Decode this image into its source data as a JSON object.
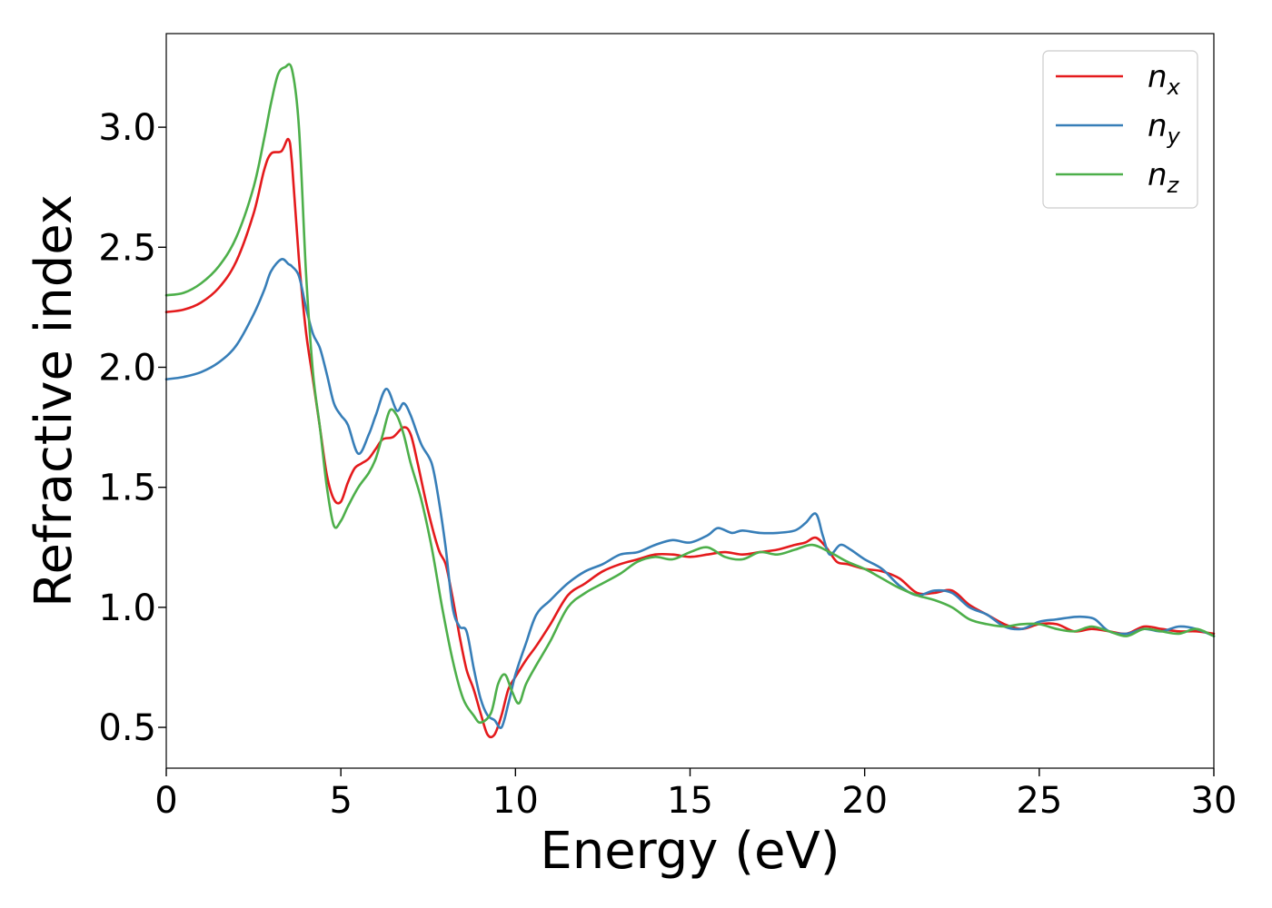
{
  "chart_data": {
    "type": "line",
    "title": "",
    "xlabel": "Energy (eV)",
    "ylabel": "Refractive index",
    "xlim": [
      0,
      30
    ],
    "ylim": [
      0.33,
      3.39
    ],
    "xticks": [
      "0",
      "5",
      "10",
      "15",
      "20",
      "25",
      "30"
    ],
    "yticks": [
      "0.5",
      "1.0",
      "1.5",
      "2.0",
      "2.5",
      "3.0"
    ],
    "grid": false,
    "legend_position": "top-right",
    "series": [
      {
        "name": "n",
        "subscript": "x",
        "color": "#e41a1c",
        "x": [
          0,
          0.5,
          1.0,
          1.5,
          2.0,
          2.5,
          2.8,
          3.0,
          3.3,
          3.5,
          3.6,
          3.8,
          4.0,
          4.2,
          4.4,
          4.6,
          4.8,
          5.0,
          5.2,
          5.4,
          5.6,
          5.8,
          6.0,
          6.2,
          6.5,
          6.8,
          7.0,
          7.2,
          7.5,
          7.8,
          8.0,
          8.2,
          8.4,
          8.6,
          8.8,
          9.0,
          9.2,
          9.4,
          9.6,
          9.8,
          10.0,
          10.3,
          10.6,
          11.0,
          11.5,
          12.0,
          12.5,
          13.0,
          13.5,
          14.0,
          14.5,
          15.0,
          15.5,
          16.0,
          16.5,
          17.0,
          17.5,
          18.0,
          18.3,
          18.6,
          18.9,
          19.2,
          19.5,
          20.0,
          20.5,
          21.0,
          21.5,
          22.0,
          22.5,
          23.0,
          23.5,
          24.0,
          24.5,
          25.0,
          25.5,
          26.0,
          26.5,
          27.0,
          27.5,
          28.0,
          28.5,
          29.0,
          29.5,
          30.0
        ],
        "y": [
          2.23,
          2.24,
          2.27,
          2.33,
          2.44,
          2.64,
          2.82,
          2.89,
          2.9,
          2.95,
          2.85,
          2.45,
          2.15,
          1.95,
          1.75,
          1.55,
          1.45,
          1.44,
          1.52,
          1.58,
          1.6,
          1.62,
          1.66,
          1.7,
          1.71,
          1.75,
          1.72,
          1.6,
          1.4,
          1.24,
          1.18,
          1.04,
          0.88,
          0.74,
          0.66,
          0.56,
          0.47,
          0.47,
          0.55,
          0.66,
          0.71,
          0.78,
          0.84,
          0.93,
          1.05,
          1.1,
          1.15,
          1.18,
          1.2,
          1.22,
          1.22,
          1.21,
          1.22,
          1.23,
          1.22,
          1.23,
          1.24,
          1.26,
          1.27,
          1.29,
          1.25,
          1.19,
          1.18,
          1.16,
          1.15,
          1.12,
          1.06,
          1.06,
          1.07,
          1.01,
          0.97,
          0.93,
          0.91,
          0.93,
          0.93,
          0.9,
          0.91,
          0.9,
          0.89,
          0.92,
          0.91,
          0.9,
          0.9,
          0.89
        ]
      },
      {
        "name": "n",
        "subscript": "y",
        "color": "#377eb8",
        "x": [
          0,
          0.5,
          1.0,
          1.5,
          2.0,
          2.5,
          2.8,
          3.0,
          3.3,
          3.5,
          3.6,
          3.8,
          4.0,
          4.2,
          4.4,
          4.6,
          4.8,
          5.0,
          5.2,
          5.5,
          5.8,
          6.0,
          6.3,
          6.6,
          6.8,
          7.0,
          7.3,
          7.6,
          7.8,
          8.0,
          8.2,
          8.4,
          8.6,
          8.8,
          9.0,
          9.2,
          9.4,
          9.6,
          9.8,
          10.0,
          10.3,
          10.6,
          11.0,
          11.5,
          12.0,
          12.5,
          13.0,
          13.5,
          14.0,
          14.5,
          15.0,
          15.5,
          15.8,
          16.2,
          16.5,
          17.0,
          17.5,
          18.0,
          18.3,
          18.6,
          18.8,
          19.0,
          19.3,
          19.6,
          20.0,
          20.5,
          21.0,
          21.5,
          22.0,
          22.5,
          23.0,
          23.5,
          24.0,
          24.5,
          25.0,
          25.5,
          26.0,
          26.3,
          26.6,
          27.0,
          27.5,
          28.0,
          28.5,
          29.0,
          29.5,
          30.0
        ],
        "y": [
          1.95,
          1.96,
          1.98,
          2.02,
          2.09,
          2.22,
          2.32,
          2.4,
          2.45,
          2.43,
          2.42,
          2.38,
          2.25,
          2.14,
          2.08,
          1.97,
          1.85,
          1.8,
          1.76,
          1.64,
          1.72,
          1.8,
          1.91,
          1.82,
          1.85,
          1.8,
          1.68,
          1.6,
          1.45,
          1.25,
          1.0,
          0.92,
          0.9,
          0.75,
          0.62,
          0.55,
          0.53,
          0.5,
          0.6,
          0.72,
          0.85,
          0.97,
          1.03,
          1.1,
          1.15,
          1.18,
          1.22,
          1.23,
          1.26,
          1.28,
          1.27,
          1.3,
          1.33,
          1.31,
          1.32,
          1.31,
          1.31,
          1.32,
          1.35,
          1.39,
          1.3,
          1.22,
          1.26,
          1.24,
          1.2,
          1.16,
          1.09,
          1.05,
          1.07,
          1.06,
          1.0,
          0.97,
          0.92,
          0.91,
          0.94,
          0.95,
          0.96,
          0.96,
          0.95,
          0.9,
          0.89,
          0.91,
          0.9,
          0.92,
          0.91,
          0.88
        ]
      },
      {
        "name": "n",
        "subscript": "z",
        "color": "#4daf4a",
        "x": [
          0,
          0.5,
          1.0,
          1.5,
          2.0,
          2.5,
          2.8,
          3.0,
          3.2,
          3.4,
          3.6,
          3.8,
          4.0,
          4.2,
          4.4,
          4.6,
          4.8,
          5.0,
          5.2,
          5.5,
          5.8,
          6.0,
          6.2,
          6.4,
          6.6,
          6.8,
          7.0,
          7.3,
          7.6,
          7.9,
          8.2,
          8.5,
          8.8,
          9.0,
          9.3,
          9.5,
          9.7,
          9.9,
          10.1,
          10.3,
          10.6,
          11.0,
          11.5,
          12.0,
          12.5,
          13.0,
          13.5,
          14.0,
          14.5,
          15.0,
          15.5,
          16.0,
          16.5,
          17.0,
          17.5,
          18.0,
          18.5,
          19.0,
          19.5,
          20.0,
          20.5,
          21.0,
          21.5,
          22.0,
          22.5,
          23.0,
          23.5,
          24.0,
          24.5,
          25.0,
          25.5,
          26.0,
          26.5,
          27.0,
          27.5,
          28.0,
          28.5,
          29.0,
          29.5,
          30.0
        ],
        "y": [
          2.3,
          2.31,
          2.35,
          2.42,
          2.54,
          2.75,
          2.95,
          3.1,
          3.22,
          3.25,
          3.24,
          3.0,
          2.4,
          1.98,
          1.75,
          1.5,
          1.34,
          1.36,
          1.42,
          1.5,
          1.56,
          1.62,
          1.72,
          1.82,
          1.8,
          1.72,
          1.6,
          1.45,
          1.25,
          1.0,
          0.78,
          0.62,
          0.55,
          0.52,
          0.56,
          0.68,
          0.72,
          0.65,
          0.6,
          0.68,
          0.76,
          0.86,
          1.0,
          1.06,
          1.1,
          1.14,
          1.19,
          1.21,
          1.2,
          1.23,
          1.25,
          1.21,
          1.2,
          1.23,
          1.22,
          1.24,
          1.26,
          1.23,
          1.19,
          1.16,
          1.12,
          1.08,
          1.05,
          1.03,
          1.0,
          0.95,
          0.93,
          0.92,
          0.93,
          0.93,
          0.91,
          0.9,
          0.92,
          0.9,
          0.88,
          0.91,
          0.9,
          0.89,
          0.91,
          0.88
        ]
      }
    ]
  }
}
